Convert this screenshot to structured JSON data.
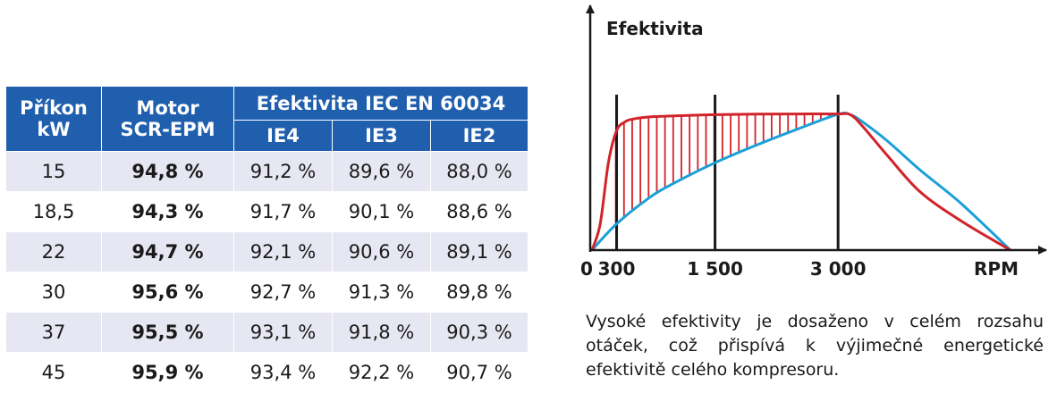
{
  "table": {
    "headers": {
      "power": "Příkon\nkW",
      "motor": "Motor\nSCR-EPM",
      "efficiency": "Efektivita IEC EN 60034",
      "ie4": "IE4",
      "ie3": "IE3",
      "ie2": "IE2"
    },
    "rows": [
      {
        "power": "15",
        "motor": "94,8 %",
        "ie4": "91,2 %",
        "ie3": "89,6 %",
        "ie2": "88,0 %"
      },
      {
        "power": "18,5",
        "motor": "94,3 %",
        "ie4": "91,7 %",
        "ie3": "90,1 %",
        "ie2": "88,6 %"
      },
      {
        "power": "22",
        "motor": "94,7 %",
        "ie4": "92,1 %",
        "ie3": "90,6 %",
        "ie2": "89,1 %"
      },
      {
        "power": "30",
        "motor": "95,6 %",
        "ie4": "92,7 %",
        "ie3": "91,3 %",
        "ie2": "89,8 %"
      },
      {
        "power": "37",
        "motor": "95,5 %",
        "ie4": "93,1 %",
        "ie3": "91,8 %",
        "ie2": "90,3 %"
      },
      {
        "power": "45",
        "motor": "95,9 %",
        "ie4": "93,4 %",
        "ie3": "92,2 %",
        "ie2": "90,7 %"
      }
    ]
  },
  "chart_data": {
    "type": "line",
    "title": "",
    "ylabel": "Efektivita",
    "xlabel": "RPM",
    "x_ticks": [
      "0",
      "300",
      "1 500",
      "3 000"
    ],
    "x_tick_values": [
      0,
      300,
      1500,
      3000
    ],
    "xlim": [
      0,
      5200
    ],
    "ylim": [
      0,
      100
    ],
    "grid": false,
    "vertical_markers": [
      300,
      1500,
      3000
    ],
    "series": [
      {
        "color": "#d2232a",
        "x": [
          0,
          100,
          200,
          300,
          400,
          500,
          700,
          1000,
          1500,
          2000,
          2500,
          3000,
          3150,
          3300,
          3600,
          4000,
          4500,
          5100
        ],
        "y": [
          0,
          18,
          60,
          82,
          88,
          90,
          91.5,
          92.2,
          93,
          93.4,
          93.5,
          93.5,
          93,
          85,
          65,
          40,
          20,
          0
        ]
      },
      {
        "color": "#1aa0d8",
        "x": [
          0,
          300,
          700,
          1000,
          1500,
          2000,
          2500,
          3000,
          3150,
          3300,
          3600,
          4000,
          4500,
          5100
        ],
        "y": [
          0,
          18,
          36,
          46,
          60,
          72,
          83,
          93.3,
          93,
          88,
          75,
          55,
          32,
          0
        ]
      }
    ],
    "fill_between": {
      "color": "#d2232a",
      "hatch": "vertical"
    }
  },
  "caption": "Vysoké efektivity je dosaženo v celém rozsahu otáček, což přispívá k výjimečné energetické efektivitě celého kompresoru."
}
